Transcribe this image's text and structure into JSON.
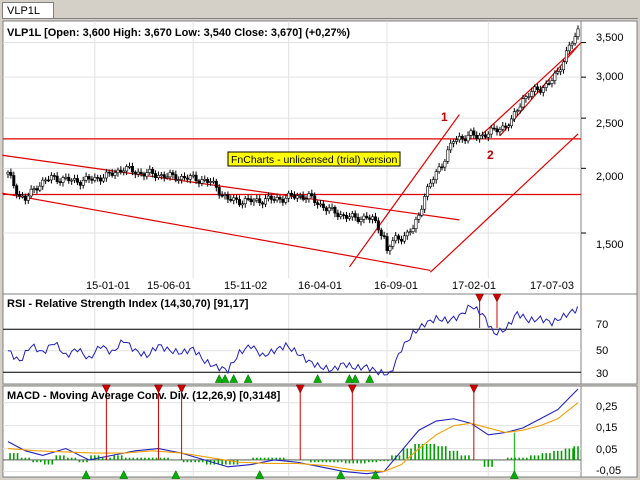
{
  "tab": {
    "label": "VLP1L"
  },
  "watermark": "FnCharts - unlicensed (trial) version",
  "colors": {
    "price": "#000000",
    "channel": "#e00000",
    "rsi": "#2020c0",
    "macd": "#2020c0",
    "signal": "#f0a000",
    "histogram": "#00a000",
    "marker_up": "#00b000",
    "marker_down": "#d00000"
  },
  "chart_data": [
    {
      "type": "candlestick",
      "title": "VLP1L [Open: 3,600  High: 3,670  Low: 3,540  Close: 3,670] (+0,27%)",
      "x_tick_labels": [
        "15-01-01",
        "15-06-01",
        "15-11-02",
        "16-04-01",
        "16-09-01",
        "17-02-01",
        "17-07-03"
      ],
      "y_tick_labels": [
        "3,500",
        "3,000",
        "2,500",
        "2,000",
        "1,500"
      ],
      "y_scale": "log",
      "ylim": [
        1250,
        3800
      ],
      "annotations": [
        "1",
        "2"
      ],
      "horizontal_levels": [
        2280,
        1780
      ],
      "close_path": [
        [
          0,
          1950
        ],
        [
          4,
          1770
        ],
        [
          6,
          1740
        ],
        [
          10,
          1850
        ],
        [
          15,
          1920
        ],
        [
          20,
          1900
        ],
        [
          25,
          1890
        ],
        [
          30,
          1910
        ],
        [
          35,
          1940
        ],
        [
          40,
          2000
        ],
        [
          45,
          1960
        ],
        [
          50,
          1950
        ],
        [
          55,
          1930
        ],
        [
          60,
          1920
        ],
        [
          65,
          1910
        ],
        [
          70,
          1880
        ],
        [
          72,
          1840
        ],
        [
          74,
          1780
        ],
        [
          76,
          1740
        ],
        [
          80,
          1730
        ],
        [
          85,
          1730
        ],
        [
          90,
          1740
        ],
        [
          95,
          1750
        ],
        [
          100,
          1770
        ],
        [
          104,
          1760
        ],
        [
          108,
          1700
        ],
        [
          112,
          1650
        ],
        [
          116,
          1620
        ],
        [
          120,
          1600
        ],
        [
          124,
          1610
        ],
        [
          126,
          1590
        ],
        [
          128,
          1540
        ],
        [
          130,
          1470
        ],
        [
          131,
          1380
        ],
        [
          132,
          1420
        ],
        [
          134,
          1460
        ],
        [
          138,
          1490
        ],
        [
          140,
          1530
        ],
        [
          142,
          1620
        ],
        [
          144,
          1780
        ],
        [
          146,
          1860
        ],
        [
          148,
          1960
        ],
        [
          150,
          2040
        ],
        [
          152,
          2150
        ],
        [
          154,
          2260
        ],
        [
          156,
          2290
        ],
        [
          158,
          2300
        ],
        [
          160,
          2320
        ],
        [
          162,
          2300
        ],
        [
          164,
          2320
        ],
        [
          166,
          2340
        ],
        [
          168,
          2360
        ],
        [
          170,
          2390
        ],
        [
          172,
          2420
        ],
        [
          174,
          2460
        ],
        [
          176,
          2600
        ],
        [
          178,
          2720
        ],
        [
          180,
          2780
        ],
        [
          182,
          2820
        ],
        [
          184,
          2850
        ],
        [
          186,
          2900
        ],
        [
          188,
          2960
        ],
        [
          190,
          3050
        ],
        [
          192,
          3250
        ],
        [
          194,
          3450
        ],
        [
          196,
          3560
        ],
        [
          197,
          3670
        ]
      ]
    },
    {
      "type": "line",
      "title": "RSI - Relative Strength Index (14,30,70) [91,17]",
      "y_tick_labels": [
        "70",
        "50",
        "30"
      ],
      "ylim": [
        20,
        100
      ],
      "levels": [
        70,
        30
      ],
      "series": [
        {
          "values": [
            [
              0,
              50
            ],
            [
              4,
              40
            ],
            [
              8,
              55
            ],
            [
              12,
              48
            ],
            [
              16,
              58
            ],
            [
              20,
              45
            ],
            [
              24,
              52
            ],
            [
              28,
              42
            ],
            [
              32,
              55
            ],
            [
              36,
              48
            ],
            [
              40,
              60
            ],
            [
              44,
              50
            ],
            [
              48,
              45
            ],
            [
              52,
              55
            ],
            [
              56,
              50
            ],
            [
              60,
              48
            ],
            [
              64,
              52
            ],
            [
              68,
              40
            ],
            [
              72,
              35
            ],
            [
              76,
              32
            ],
            [
              80,
              48
            ],
            [
              84,
              55
            ],
            [
              88,
              45
            ],
            [
              92,
              50
            ],
            [
              96,
              55
            ],
            [
              100,
              48
            ],
            [
              104,
              40
            ],
            [
              108,
              35
            ],
            [
              112,
              32
            ],
            [
              116,
              38
            ],
            [
              120,
              34
            ],
            [
              124,
              35
            ],
            [
              128,
              30
            ],
            [
              132,
              28
            ],
            [
              136,
              52
            ],
            [
              140,
              66
            ],
            [
              144,
              75
            ],
            [
              148,
              80
            ],
            [
              152,
              78
            ],
            [
              156,
              82
            ],
            [
              160,
              92
            ],
            [
              164,
              84
            ],
            [
              168,
              66
            ],
            [
              172,
              70
            ],
            [
              176,
              85
            ],
            [
              180,
              78
            ],
            [
              184,
              80
            ],
            [
              188,
              76
            ],
            [
              192,
              82
            ],
            [
              196,
              88
            ],
            [
              197,
              91
            ]
          ]
        }
      ]
    },
    {
      "type": "line",
      "title": "MACD - Moving Average Conv. Div. (12,26,9) [0,3148]",
      "y_tick_labels": [
        "0,25",
        "0,15",
        "0,05",
        "-0,05"
      ],
      "ylim": [
        -0.07,
        0.31
      ],
      "series": [
        {
          "values": [
            [
              0,
              0.08
            ],
            [
              6,
              0.04
            ],
            [
              12,
              0.02
            ],
            [
              20,
              0.05
            ],
            [
              28,
              0.0
            ],
            [
              36,
              0.02
            ],
            [
              44,
              0.04
            ],
            [
              52,
              0.05
            ],
            [
              60,
              0.03
            ],
            [
              68,
              0.0
            ],
            [
              76,
              -0.03
            ],
            [
              84,
              -0.02
            ],
            [
              92,
              0.0
            ],
            [
              100,
              -0.01
            ],
            [
              108,
              -0.03
            ],
            [
              116,
              -0.05
            ],
            [
              124,
              -0.06
            ],
            [
              130,
              -0.05
            ],
            [
              136,
              0.04
            ],
            [
              142,
              0.13
            ],
            [
              148,
              0.17
            ],
            [
              154,
              0.18
            ],
            [
              160,
              0.16
            ],
            [
              166,
              0.11
            ],
            [
              172,
              0.12
            ],
            [
              178,
              0.14
            ],
            [
              184,
              0.18
            ],
            [
              190,
              0.22
            ],
            [
              197,
              0.31
            ]
          ]
        },
        {
          "values": [
            [
              0,
              0.05
            ],
            [
              10,
              0.04
            ],
            [
              20,
              0.035
            ],
            [
              30,
              0.03
            ],
            [
              40,
              0.03
            ],
            [
              50,
              0.04
            ],
            [
              60,
              0.03
            ],
            [
              70,
              0.01
            ],
            [
              80,
              -0.01
            ],
            [
              90,
              -0.015
            ],
            [
              100,
              -0.015
            ],
            [
              110,
              -0.025
            ],
            [
              120,
              -0.045
            ],
            [
              130,
              -0.05
            ],
            [
              136,
              -0.02
            ],
            [
              142,
              0.05
            ],
            [
              148,
              0.11
            ],
            [
              154,
              0.15
            ],
            [
              160,
              0.16
            ],
            [
              166,
              0.14
            ],
            [
              172,
              0.12
            ],
            [
              178,
              0.13
            ],
            [
              184,
              0.15
            ],
            [
              190,
              0.18
            ],
            [
              197,
              0.25
            ]
          ]
        }
      ],
      "histogram": [
        [
          2,
          0.03
        ],
        [
          6,
          0.01
        ],
        [
          10,
          -0.01
        ],
        [
          14,
          -0.02
        ],
        [
          18,
          0.02
        ],
        [
          22,
          0.01
        ],
        [
          26,
          -0.01
        ],
        [
          30,
          0.02
        ],
        [
          34,
          0.01
        ],
        [
          38,
          0.02
        ],
        [
          42,
          0.01
        ],
        [
          46,
          0.01
        ],
        [
          50,
          0.01
        ],
        [
          54,
          0.01
        ],
        [
          58,
          0.0
        ],
        [
          62,
          -0.01
        ],
        [
          66,
          -0.01
        ],
        [
          70,
          -0.02
        ],
        [
          74,
          -0.02
        ],
        [
          78,
          -0.02
        ],
        [
          82,
          0.0
        ],
        [
          86,
          0.01
        ],
        [
          90,
          0.01
        ],
        [
          94,
          0.01
        ],
        [
          98,
          0.0
        ],
        [
          102,
          0.0
        ],
        [
          106,
          -0.01
        ],
        [
          110,
          -0.01
        ],
        [
          114,
          -0.01
        ],
        [
          118,
          -0.015
        ],
        [
          122,
          -0.015
        ],
        [
          126,
          -0.01
        ],
        [
          130,
          -0.005
        ],
        [
          134,
          0.02
        ],
        [
          138,
          0.05
        ],
        [
          142,
          0.07
        ],
        [
          146,
          0.07
        ],
        [
          150,
          0.06
        ],
        [
          154,
          0.04
        ],
        [
          158,
          0.02
        ],
        [
          162,
          0.0
        ],
        [
          166,
          -0.03
        ],
        [
          170,
          0.0
        ],
        [
          174,
          0.01
        ],
        [
          178,
          0.01
        ],
        [
          182,
          0.02
        ],
        [
          186,
          0.03
        ],
        [
          190,
          0.04
        ],
        [
          194,
          0.05
        ],
        [
          197,
          0.06
        ]
      ]
    }
  ]
}
